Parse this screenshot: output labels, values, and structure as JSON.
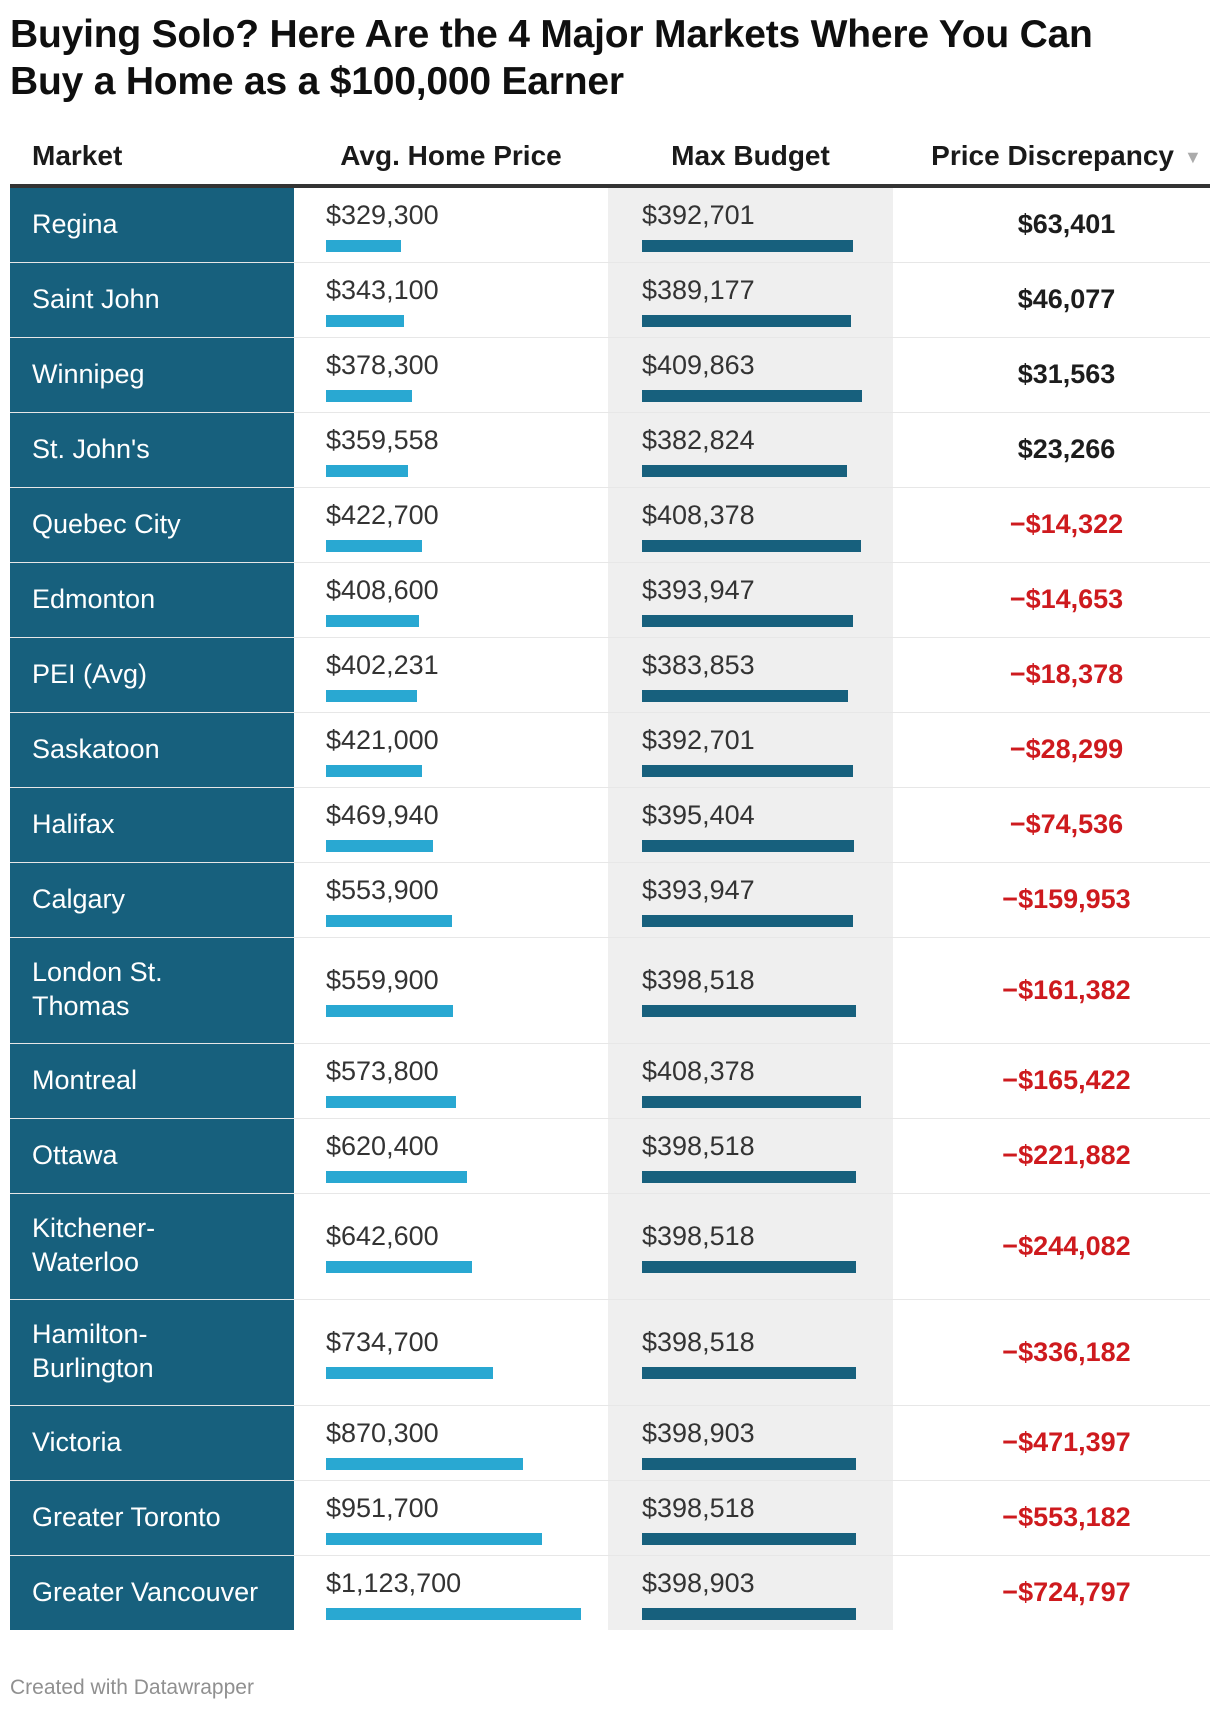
{
  "title": "Buying Solo? Here Are the 4 Major Markets Where You Can\nBuy a Home as a $100,000 Earner",
  "footer": "Created with Datawrapper",
  "sort_icon": "▼",
  "colors": {
    "teal": "#17607d",
    "bar_blue": "#29a8d2",
    "negative_red": "#ce1a1e",
    "max_budget_column_bg": "#efefef",
    "header_border": "#333333"
  },
  "chart_data": {
    "type": "table",
    "title": "Buying Solo? Here Are the 4 Major Markets Where You Can Buy a Home as a $100,000 Earner",
    "columns": [
      "Market",
      "Avg. Home Price",
      "Max Budget",
      "Price Discrepancy"
    ],
    "sort_indicator": {
      "column": "Price Discrepancy",
      "direction": "desc"
    },
    "bar_style": {
      "avg_home_price": "blue bar scaled to column max",
      "max_budget": "teal bar scaled to column max"
    },
    "rows": [
      {
        "market": "Regina",
        "avg_home_price": 329300,
        "avg_home_price_label": "$329,300",
        "max_budget": 392701,
        "max_budget_label": "$392,701",
        "price_discrepancy": 63401,
        "price_discrepancy_label": "$63,401"
      },
      {
        "market": "Saint John",
        "avg_home_price": 343100,
        "avg_home_price_label": "$343,100",
        "max_budget": 389177,
        "max_budget_label": "$389,177",
        "price_discrepancy": 46077,
        "price_discrepancy_label": "$46,077"
      },
      {
        "market": "Winnipeg",
        "avg_home_price": 378300,
        "avg_home_price_label": "$378,300",
        "max_budget": 409863,
        "max_budget_label": "$409,863",
        "price_discrepancy": 31563,
        "price_discrepancy_label": "$31,563"
      },
      {
        "market": "St. John's",
        "avg_home_price": 359558,
        "avg_home_price_label": "$359,558",
        "max_budget": 382824,
        "max_budget_label": "$382,824",
        "price_discrepancy": 23266,
        "price_discrepancy_label": "$23,266"
      },
      {
        "market": "Quebec City",
        "avg_home_price": 422700,
        "avg_home_price_label": "$422,700",
        "max_budget": 408378,
        "max_budget_label": "$408,378",
        "price_discrepancy": -14322,
        "price_discrepancy_label": "−$14,322"
      },
      {
        "market": "Edmonton",
        "avg_home_price": 408600,
        "avg_home_price_label": "$408,600",
        "max_budget": 393947,
        "max_budget_label": "$393,947",
        "price_discrepancy": -14653,
        "price_discrepancy_label": "−$14,653"
      },
      {
        "market": "PEI (Avg)",
        "avg_home_price": 402231,
        "avg_home_price_label": "$402,231",
        "max_budget": 383853,
        "max_budget_label": "$383,853",
        "price_discrepancy": -18378,
        "price_discrepancy_label": "−$18,378"
      },
      {
        "market": "Saskatoon",
        "avg_home_price": 421000,
        "avg_home_price_label": "$421,000",
        "max_budget": 392701,
        "max_budget_label": "$392,701",
        "price_discrepancy": -28299,
        "price_discrepancy_label": "−$28,299"
      },
      {
        "market": "Halifax",
        "avg_home_price": 469940,
        "avg_home_price_label": "$469,940",
        "max_budget": 395404,
        "max_budget_label": "$395,404",
        "price_discrepancy": -74536,
        "price_discrepancy_label": "−$74,536"
      },
      {
        "market": "Calgary",
        "avg_home_price": 553900,
        "avg_home_price_label": "$553,900",
        "max_budget": 393947,
        "max_budget_label": "$393,947",
        "price_discrepancy": -159953,
        "price_discrepancy_label": "−$159,953"
      },
      {
        "market": "London St.\nThomas",
        "avg_home_price": 559900,
        "avg_home_price_label": "$559,900",
        "max_budget": 398518,
        "max_budget_label": "$398,518",
        "price_discrepancy": -161382,
        "price_discrepancy_label": "−$161,382"
      },
      {
        "market": "Montreal",
        "avg_home_price": 573800,
        "avg_home_price_label": "$573,800",
        "max_budget": 408378,
        "max_budget_label": "$408,378",
        "price_discrepancy": -165422,
        "price_discrepancy_label": "−$165,422"
      },
      {
        "market": "Ottawa",
        "avg_home_price": 620400,
        "avg_home_price_label": "$620,400",
        "max_budget": 398518,
        "max_budget_label": "$398,518",
        "price_discrepancy": -221882,
        "price_discrepancy_label": "−$221,882"
      },
      {
        "market": "Kitchener-\nWaterloo",
        "avg_home_price": 642600,
        "avg_home_price_label": "$642,600",
        "max_budget": 398518,
        "max_budget_label": "$398,518",
        "price_discrepancy": -244082,
        "price_discrepancy_label": "−$244,082"
      },
      {
        "market": "Hamilton-\nBurlington",
        "avg_home_price": 734700,
        "avg_home_price_label": "$734,700",
        "max_budget": 398518,
        "max_budget_label": "$398,518",
        "price_discrepancy": -336182,
        "price_discrepancy_label": "−$336,182"
      },
      {
        "market": "Victoria",
        "avg_home_price": 870300,
        "avg_home_price_label": "$870,300",
        "max_budget": 398903,
        "max_budget_label": "$398,903",
        "price_discrepancy": -471397,
        "price_discrepancy_label": "−$471,397"
      },
      {
        "market": "Greater Toronto",
        "avg_home_price": 951700,
        "avg_home_price_label": "$951,700",
        "max_budget": 398518,
        "max_budget_label": "$398,518",
        "price_discrepancy": -553182,
        "price_discrepancy_label": "−$553,182"
      },
      {
        "market": "Greater Vancouver",
        "avg_home_price": 1123700,
        "avg_home_price_label": "$1,123,700",
        "max_budget": 398903,
        "max_budget_label": "$398,903",
        "price_discrepancy": -724797,
        "price_discrepancy_label": "−$724,797"
      }
    ]
  }
}
